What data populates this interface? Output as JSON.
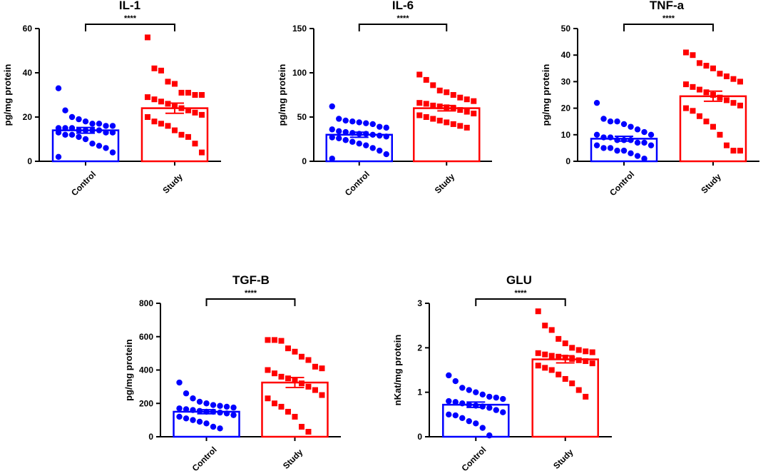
{
  "chart_data": [
    {
      "type": "bar",
      "title": "IL-1",
      "ylabel": "pg/mg protein",
      "ylim": [
        0,
        60
      ],
      "yticks": [
        0,
        20,
        40,
        60
      ],
      "categories": [
        "Control",
        "Study"
      ],
      "significance": "****",
      "series": [
        {
          "name": "Control",
          "color": "#0000ff",
          "marker": "circle",
          "mean": 14,
          "sem": 1.3,
          "points": [
            33,
            23,
            20,
            19,
            18,
            17,
            17,
            16,
            16,
            15,
            15,
            15,
            14,
            14,
            14,
            14,
            13,
            13,
            13,
            12,
            12,
            11,
            10,
            8,
            7,
            6,
            4,
            2
          ]
        },
        {
          "name": "Study",
          "color": "#ff0000",
          "marker": "square",
          "mean": 24,
          "sem": 2.3,
          "points": [
            56,
            42,
            41,
            36,
            35,
            31,
            31,
            30,
            30,
            29,
            28,
            27,
            26,
            25,
            24,
            23,
            22,
            21,
            20,
            18,
            17,
            16,
            14,
            12,
            11,
            8,
            4
          ]
        }
      ]
    },
    {
      "type": "bar",
      "title": "IL-6",
      "ylabel": "pg/mg protein",
      "ylim": [
        0,
        150
      ],
      "yticks": [
        0,
        50,
        100,
        150
      ],
      "categories": [
        "Control",
        "Study"
      ],
      "significance": "****",
      "series": [
        {
          "name": "Control",
          "color": "#0000ff",
          "marker": "circle",
          "mean": 30,
          "sem": 2.9,
          "points": [
            62,
            48,
            46,
            45,
            44,
            43,
            42,
            39,
            38,
            36,
            34,
            33,
            32,
            31,
            31,
            30,
            29,
            28,
            27,
            26,
            24,
            22,
            20,
            18,
            15,
            12,
            8,
            3
          ]
        },
        {
          "name": "Study",
          "color": "#ff0000",
          "marker": "square",
          "mean": 60,
          "sem": 3.0,
          "points": [
            98,
            92,
            86,
            80,
            78,
            75,
            72,
            70,
            68,
            66,
            65,
            63,
            62,
            61,
            60,
            58,
            56,
            54,
            52,
            50,
            48,
            46,
            44,
            42,
            40,
            38
          ]
        }
      ]
    },
    {
      "type": "bar",
      "title": "TNF-a",
      "ylabel": "pg/mg protein",
      "ylim": [
        0,
        50
      ],
      "yticks": [
        0,
        10,
        20,
        30,
        40,
        50
      ],
      "categories": [
        "Control",
        "Study"
      ],
      "significance": "****",
      "series": [
        {
          "name": "Control",
          "color": "#0000ff",
          "marker": "circle",
          "mean": 8.5,
          "sem": 0.9,
          "points": [
            22,
            16,
            15,
            15,
            14,
            13,
            12,
            11,
            10,
            10,
            9,
            9,
            8,
            8,
            8,
            7,
            7,
            6,
            6,
            5,
            5,
            4,
            4,
            3,
            2,
            1
          ]
        },
        {
          "name": "Study",
          "color": "#ff0000",
          "marker": "square",
          "mean": 24.5,
          "sem": 1.9,
          "points": [
            41,
            40,
            37,
            36,
            35,
            33,
            32,
            31,
            30,
            29,
            28,
            27,
            26,
            25,
            24,
            23,
            22,
            21,
            20,
            19,
            17,
            15,
            13,
            10,
            6,
            4,
            4
          ]
        }
      ]
    },
    {
      "type": "bar",
      "title": "TGF-B",
      "ylabel": "pg/mg protein",
      "ylim": [
        0,
        800
      ],
      "yticks": [
        0,
        200,
        400,
        600,
        800
      ],
      "categories": [
        "Control",
        "Study"
      ],
      "significance": "****",
      "series": [
        {
          "name": "Control",
          "color": "#0000ff",
          "marker": "circle",
          "mean": 150,
          "sem": 12,
          "points": [
            325,
            260,
            230,
            210,
            200,
            190,
            185,
            180,
            175,
            170,
            165,
            160,
            155,
            150,
            150,
            145,
            140,
            130,
            120,
            110,
            100,
            90,
            80,
            60,
            50
          ]
        },
        {
          "name": "Study",
          "color": "#ff0000",
          "marker": "square",
          "mean": 325,
          "sem": 30,
          "points": [
            580,
            580,
            575,
            530,
            510,
            480,
            460,
            420,
            410,
            400,
            380,
            360,
            350,
            340,
            320,
            300,
            280,
            250,
            230,
            200,
            180,
            150,
            120,
            60,
            30
          ]
        }
      ]
    },
    {
      "type": "bar",
      "title": "GLU",
      "ylabel": "nKat/mg protein",
      "ylim": [
        0,
        3
      ],
      "yticks": [
        0,
        1,
        2,
        3
      ],
      "categories": [
        "Control",
        "Study"
      ],
      "significance": "****",
      "series": [
        {
          "name": "Control",
          "color": "#0000ff",
          "marker": "circle",
          "mean": 0.72,
          "sem": 0.06,
          "points": [
            1.38,
            1.25,
            1.1,
            1.05,
            1.0,
            0.95,
            0.9,
            0.88,
            0.85,
            0.8,
            0.78,
            0.75,
            0.72,
            0.7,
            0.68,
            0.65,
            0.6,
            0.55,
            0.5,
            0.48,
            0.42,
            0.35,
            0.3,
            0.2,
            0.03
          ]
        },
        {
          "name": "Study",
          "color": "#ff0000",
          "marker": "square",
          "mean": 1.74,
          "sem": 0.08,
          "points": [
            2.82,
            2.5,
            2.4,
            2.2,
            2.1,
            2.0,
            1.95,
            1.92,
            1.9,
            1.88,
            1.85,
            1.82,
            1.8,
            1.78,
            1.75,
            1.72,
            1.7,
            1.65,
            1.6,
            1.55,
            1.5,
            1.4,
            1.3,
            1.2,
            1.05,
            0.9
          ]
        }
      ]
    }
  ]
}
